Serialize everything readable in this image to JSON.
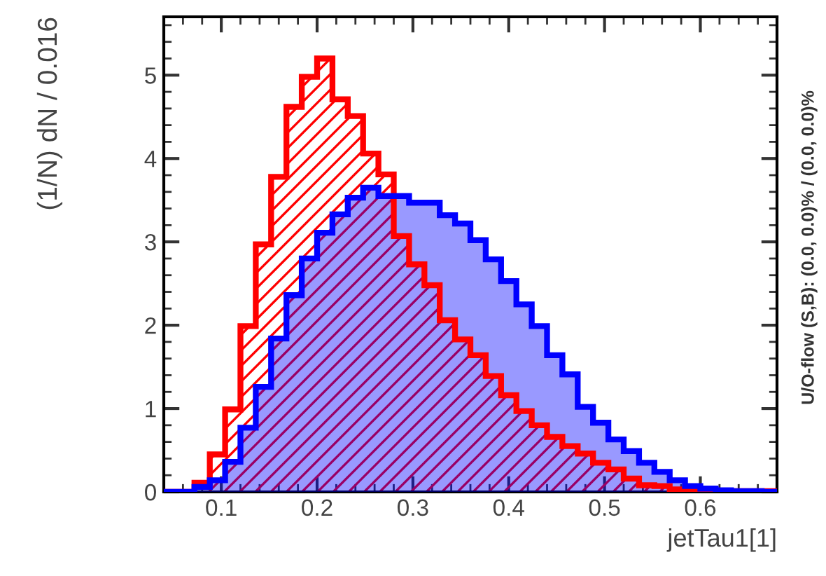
{
  "chart_data": {
    "type": "histogram",
    "xlabel": "jetTau1[1]",
    "ylabel": "(1/N) dN / 0.016",
    "bins": [
      0.04,
      0.056,
      0.072,
      0.088,
      0.104,
      0.12,
      0.136,
      0.152,
      0.168,
      0.184,
      0.2,
      0.216,
      0.232,
      0.248,
      0.264,
      0.28,
      0.296,
      0.312,
      0.328,
      0.344,
      0.36,
      0.376,
      0.392,
      0.408,
      0.424,
      0.44,
      0.456,
      0.472,
      0.488,
      0.504,
      0.52,
      0.536,
      0.552,
      0.568,
      0.584,
      0.6,
      0.616,
      0.632,
      0.648,
      0.664,
      0.68
    ],
    "series": [
      {
        "color": "#0000ff",
        "values": [
          0,
          0,
          0.06,
          0.14,
          0.36,
          0.77,
          1.26,
          1.84,
          2.36,
          2.8,
          3.11,
          3.33,
          3.53,
          3.65,
          3.55,
          3.55,
          3.47,
          3.47,
          3.32,
          3.22,
          3.02,
          2.79,
          2.53,
          2.25,
          1.99,
          1.64,
          1.41,
          1.02,
          0.83,
          0.63,
          0.49,
          0.35,
          0.24,
          0.14,
          0.07,
          0.04,
          0.02,
          0.01,
          0.01,
          0
        ]
      },
      {
        "color": "#ff0000",
        "values": [
          0,
          0,
          0.11,
          0.45,
          0.99,
          1.99,
          2.97,
          3.78,
          4.62,
          4.98,
          5.2,
          4.71,
          4.51,
          4.06,
          3.81,
          3.07,
          2.73,
          2.48,
          2.06,
          1.83,
          1.64,
          1.39,
          1.16,
          0.97,
          0.8,
          0.66,
          0.55,
          0.46,
          0.35,
          0.27,
          0.16,
          0.08,
          0.07,
          0.03,
          0.02,
          0.02,
          0.01,
          0.01,
          0.01,
          0.01
        ]
      }
    ],
    "xlim": [
      0.04,
      0.68
    ],
    "ylim": [
      0,
      5.7
    ],
    "xticks": [
      0.1,
      0.2,
      0.3,
      0.4,
      0.5,
      0.6
    ],
    "yticks": [
      0,
      1,
      2,
      3,
      4,
      5
    ],
    "grid": false,
    "legend": false,
    "annotations": [
      "U/O-flow (S,B): (0.0, 0.0)% / (0.0, 0.0)%"
    ]
  }
}
